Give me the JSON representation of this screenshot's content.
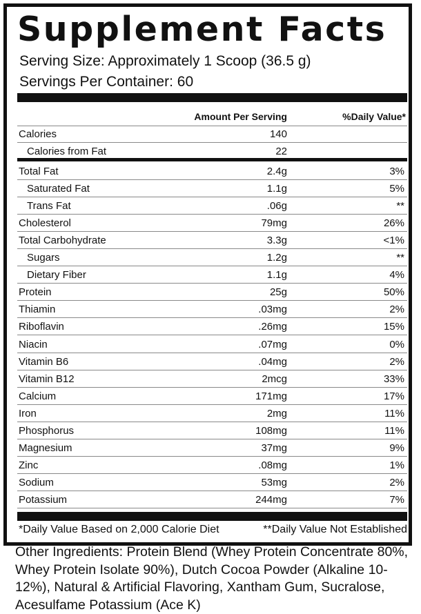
{
  "title": "Supplement Facts",
  "serving_size": "Serving Size: Approximately 1 Scoop (36.5 g)",
  "servings_per_container": "Servings Per Container: 60",
  "header": {
    "amount": "Amount Per Serving",
    "dv": "%Daily Value*"
  },
  "calories": [
    {
      "label": "Calories",
      "amount": "140",
      "dv": "",
      "indent": false
    },
    {
      "label": "Calories from Fat",
      "amount": "22",
      "dv": "",
      "indent": true
    }
  ],
  "nutrients": [
    {
      "label": "Total Fat",
      "amount": "2.4g",
      "dv": "3%",
      "indent": false
    },
    {
      "label": "Saturated Fat",
      "amount": "1.1g",
      "dv": "5%",
      "indent": true
    },
    {
      "label": "Trans Fat",
      "amount": ".06g",
      "dv": "**",
      "indent": true
    },
    {
      "label": "Cholesterol",
      "amount": "79mg",
      "dv": "26%",
      "indent": false
    },
    {
      "label": "Total Carbohydrate",
      "amount": "3.3g",
      "dv": "<1%",
      "indent": false
    },
    {
      "label": "Sugars",
      "amount": "1.2g",
      "dv": "**",
      "indent": true
    },
    {
      "label": "Dietary Fiber",
      "amount": "1.1g",
      "dv": "4%",
      "indent": true
    },
    {
      "label": "Protein",
      "amount": "25g",
      "dv": "50%",
      "indent": false
    },
    {
      "label": "Thiamin",
      "amount": ".03mg",
      "dv": "2%",
      "indent": false
    },
    {
      "label": "Riboflavin",
      "amount": ".26mg",
      "dv": "15%",
      "indent": false
    },
    {
      "label": "Niacin",
      "amount": ".07mg",
      "dv": "0%",
      "indent": false
    },
    {
      "label": "Vitamin B6",
      "amount": ".04mg",
      "dv": "2%",
      "indent": false
    },
    {
      "label": "Vitamin B12",
      "amount": "2mcg",
      "dv": "33%",
      "indent": false
    },
    {
      "label": "Calcium",
      "amount": "171mg",
      "dv": "17%",
      "indent": false
    },
    {
      "label": "Iron",
      "amount": "2mg",
      "dv": "11%",
      "indent": false
    },
    {
      "label": "Phosphorus",
      "amount": "108mg",
      "dv": "11%",
      "indent": false
    },
    {
      "label": "Magnesium",
      "amount": "37mg",
      "dv": "9%",
      "indent": false
    },
    {
      "label": "Zinc",
      "amount": ".08mg",
      "dv": "1%",
      "indent": false
    },
    {
      "label": "Sodium",
      "amount": "53mg",
      "dv": "2%",
      "indent": false
    },
    {
      "label": "Potassium",
      "amount": "244mg",
      "dv": "7%",
      "indent": false
    }
  ],
  "footnotes": {
    "left": "*Daily Value Based on 2,000 Calorie Diet",
    "right": "**Daily Value Not Established"
  },
  "other_ingredients": "Other Ingredients: Protein Blend (Whey Protein Concentrate 80%, Whey Protein Isolate 90%), Dutch Cocoa Powder (Alkaline 10-12%), Natural & Artificial Flavoring, Xantham Gum, Sucralose, Acesulfame Potassium (Ace K)"
}
